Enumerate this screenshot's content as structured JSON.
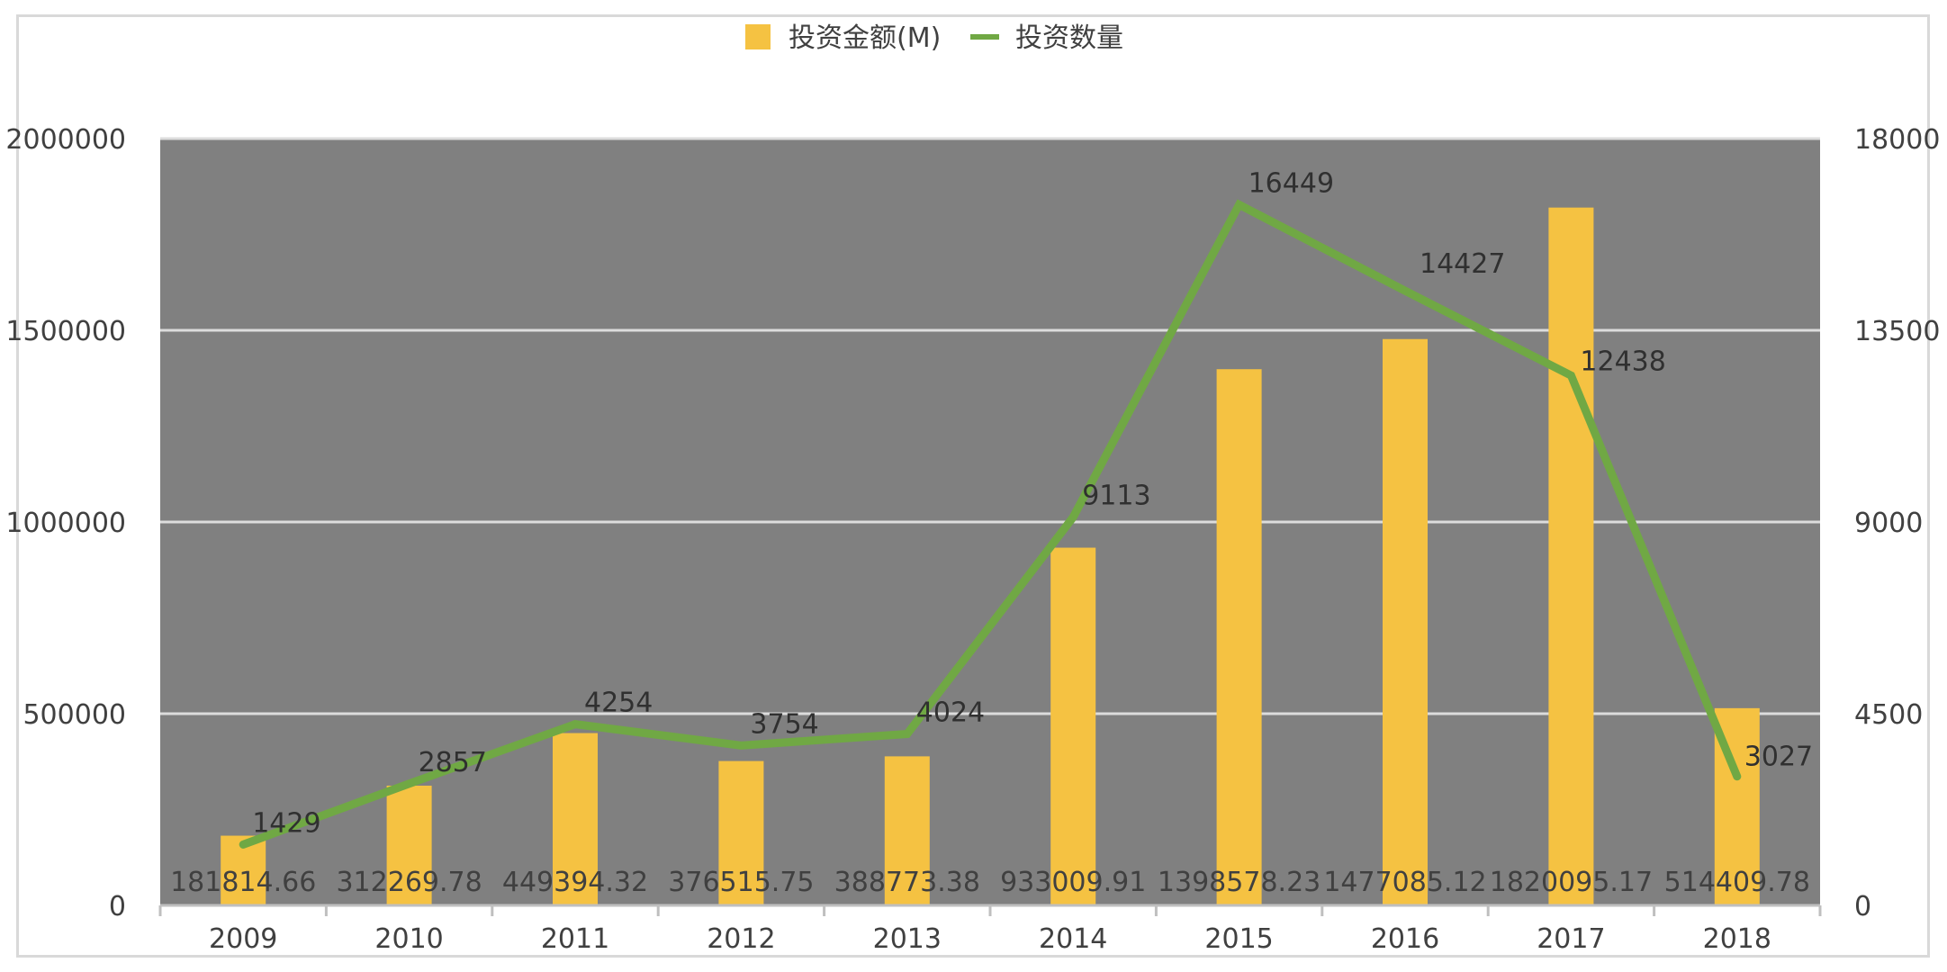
{
  "chart_data": {
    "type": "bar",
    "categories": [
      "2009",
      "2010",
      "2011",
      "2012",
      "2013",
      "2014",
      "2015",
      "2016",
      "2017",
      "2018"
    ],
    "series": [
      {
        "name": "投资金额(M)",
        "kind": "bar",
        "axis": "left",
        "color": "#f5c242",
        "values": [
          181814.66,
          312269.78,
          449394.32,
          376515.75,
          388773.38,
          933009.91,
          1398578.23,
          1477085.12,
          1820095.17,
          514409.78
        ],
        "labels": [
          "181814.66",
          "312269.78",
          "449394.32",
          "376515.75",
          "388773.38",
          "933009.91",
          "1398578.23",
          "1477085.12",
          "1820095.17",
          "514409.78"
        ]
      },
      {
        "name": "投资数量",
        "kind": "line",
        "axis": "right",
        "color": "#70a844",
        "values": [
          1429,
          2857,
          4254,
          3754,
          4024,
          9113,
          16449,
          14427,
          12438,
          3027
        ],
        "labels": [
          "1429",
          "2857",
          "4254",
          "3754",
          "4024",
          "9113",
          "16449",
          "14427",
          "12438",
          "3027"
        ]
      }
    ],
    "y_left": {
      "ylim": [
        0,
        2000000
      ],
      "ticks": [
        "0",
        "500000",
        "1000000",
        "1500000",
        "2000000"
      ]
    },
    "y_right": {
      "ylim": [
        0,
        18000
      ],
      "ticks": [
        "0",
        "4500",
        "9000",
        "13500",
        "18000"
      ]
    },
    "legend_position": "top-center",
    "plot_background": "#808080",
    "grid": true
  }
}
